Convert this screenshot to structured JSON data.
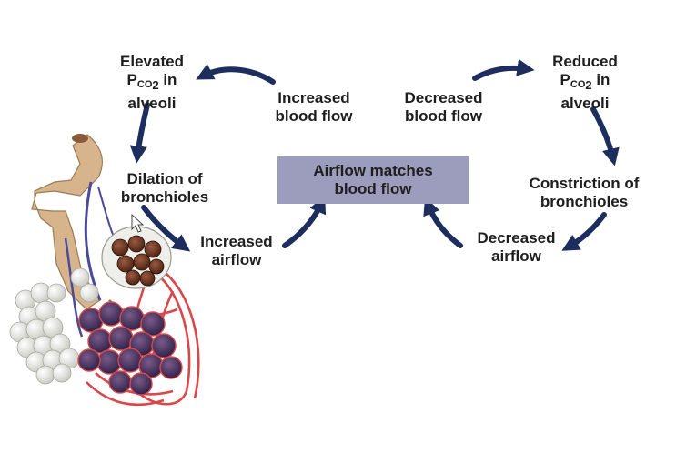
{
  "colors": {
    "arrow": "#1c2d5e",
    "center_box": "#9c9cbc",
    "text": "#1e1e1e",
    "vessel": "#d8484a",
    "alveoli": "#e8e8e2",
    "bronchiole": "#d8b48c",
    "vein": "#4b4a9a"
  },
  "center": {
    "line1": "Airflow matches",
    "line2": "blood flow"
  },
  "left_cycle": {
    "elevated": {
      "line1": "Elevated",
      "p": "P",
      "co2": "CO",
      "two": "2",
      "line2_suffix": " in",
      "line3": "alveoli"
    },
    "increased_blood_flow": {
      "line1": "Increased",
      "line2": "blood flow"
    },
    "dilation": {
      "line1": "Dilation of",
      "line2": "bronchioles"
    },
    "increased_airflow": {
      "line1": "Increased",
      "line2": "airflow"
    }
  },
  "right_cycle": {
    "reduced": {
      "line1": "Reduced",
      "p": "P",
      "co2": "CO",
      "two": "2",
      "line2_suffix": " in",
      "line3": "alveoli"
    },
    "decreased_blood_flow": {
      "line1": "Decreased",
      "line2": "blood flow"
    },
    "constriction": {
      "line1": "Constriction of",
      "line2": "bronchioles"
    },
    "decreased_airflow": {
      "line1": "Decreased",
      "line2": "airflow"
    }
  }
}
